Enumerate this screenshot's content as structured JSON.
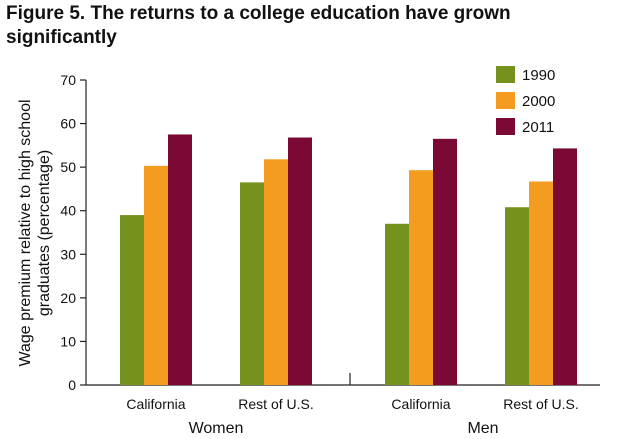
{
  "title": "Figure 5. The returns to a college education have grown significantly",
  "chart_data": {
    "type": "bar",
    "title": "Figure 5. The returns to a college education have grown significantly",
    "xlabel": "",
    "ylabel": "Wage premium relative to high school graduates (percentage)",
    "ylabel_lines": [
      "Wage premium relative to high school",
      "graduates (percentage)"
    ],
    "ylim": [
      0,
      70
    ],
    "yticks": [
      0,
      10,
      20,
      30,
      40,
      50,
      60,
      70
    ],
    "groups": [
      {
        "label": "Women",
        "categories": [
          "California",
          "Rest of U.S."
        ]
      },
      {
        "label": "Men",
        "categories": [
          "California",
          "Rest of U.S."
        ]
      }
    ],
    "categories": [
      "California",
      "Rest of U.S.",
      "California",
      "Rest of U.S."
    ],
    "series": [
      {
        "name": "1990",
        "color": "#76921e",
        "values": [
          39,
          46.5,
          37,
          40.8
        ]
      },
      {
        "name": "2000",
        "color": "#f39c1f",
        "values": [
          50.3,
          51.8,
          49.3,
          46.7
        ]
      },
      {
        "name": "2011",
        "color": "#7a0a35",
        "values": [
          57.5,
          56.8,
          56.5,
          54.3
        ]
      }
    ],
    "legend_position": "top-right",
    "grid": false
  }
}
